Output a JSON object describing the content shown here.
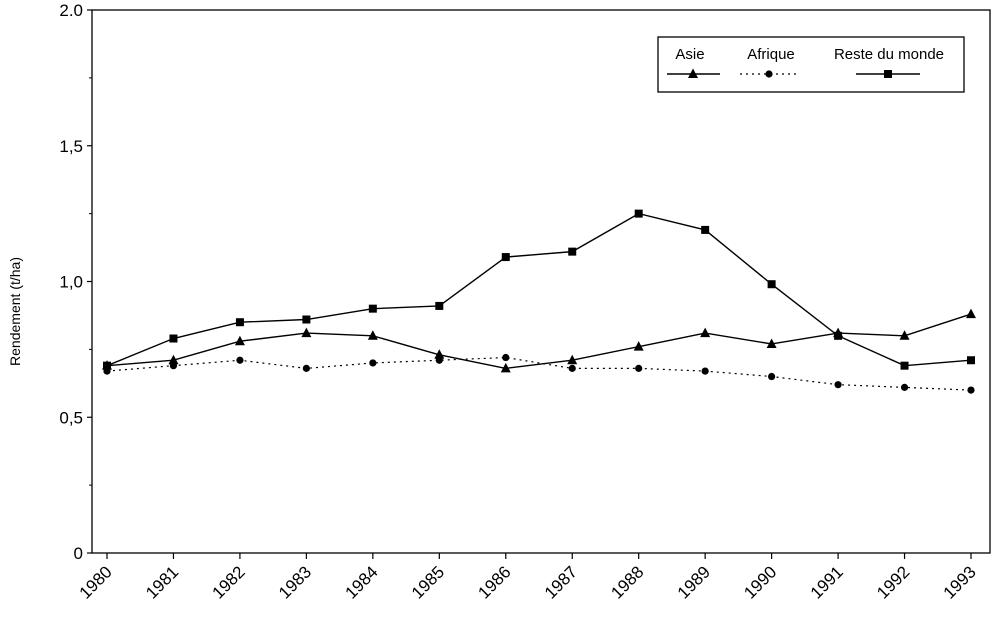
{
  "chart_data": {
    "type": "line",
    "title": "",
    "xlabel": "",
    "ylabel": "Rendement (t/ha)",
    "categories": [
      "1980",
      "1981",
      "1982",
      "1983",
      "1984",
      "1985",
      "1986",
      "1987",
      "1988",
      "1989",
      "1990",
      "1991",
      "1992",
      "1993"
    ],
    "ylim": [
      0,
      2.0
    ],
    "yticks": [
      0,
      0.5,
      1.0,
      1.5,
      2.0
    ],
    "ytick_labels": [
      "0",
      "0,5",
      "1,0",
      "1,5",
      "2.0"
    ],
    "grid": false,
    "legend_position": "top-right",
    "series": [
      {
        "name": "Asie",
        "marker": "triangle",
        "line": "solid",
        "values": [
          0.69,
          0.71,
          0.78,
          0.81,
          0.8,
          0.73,
          0.68,
          0.71,
          0.76,
          0.81,
          0.77,
          0.81,
          0.8,
          0.88
        ]
      },
      {
        "name": "Afrique",
        "marker": "circle",
        "line": "dotted",
        "values": [
          0.67,
          0.69,
          0.71,
          0.68,
          0.7,
          0.71,
          0.72,
          0.68,
          0.68,
          0.67,
          0.65,
          0.62,
          0.61,
          0.6
        ]
      },
      {
        "name": "Reste du monde",
        "marker": "square",
        "line": "solid",
        "values": [
          0.69,
          0.79,
          0.85,
          0.86,
          0.9,
          0.91,
          1.09,
          1.11,
          1.25,
          1.19,
          0.99,
          0.8,
          0.69,
          0.71
        ]
      }
    ]
  }
}
